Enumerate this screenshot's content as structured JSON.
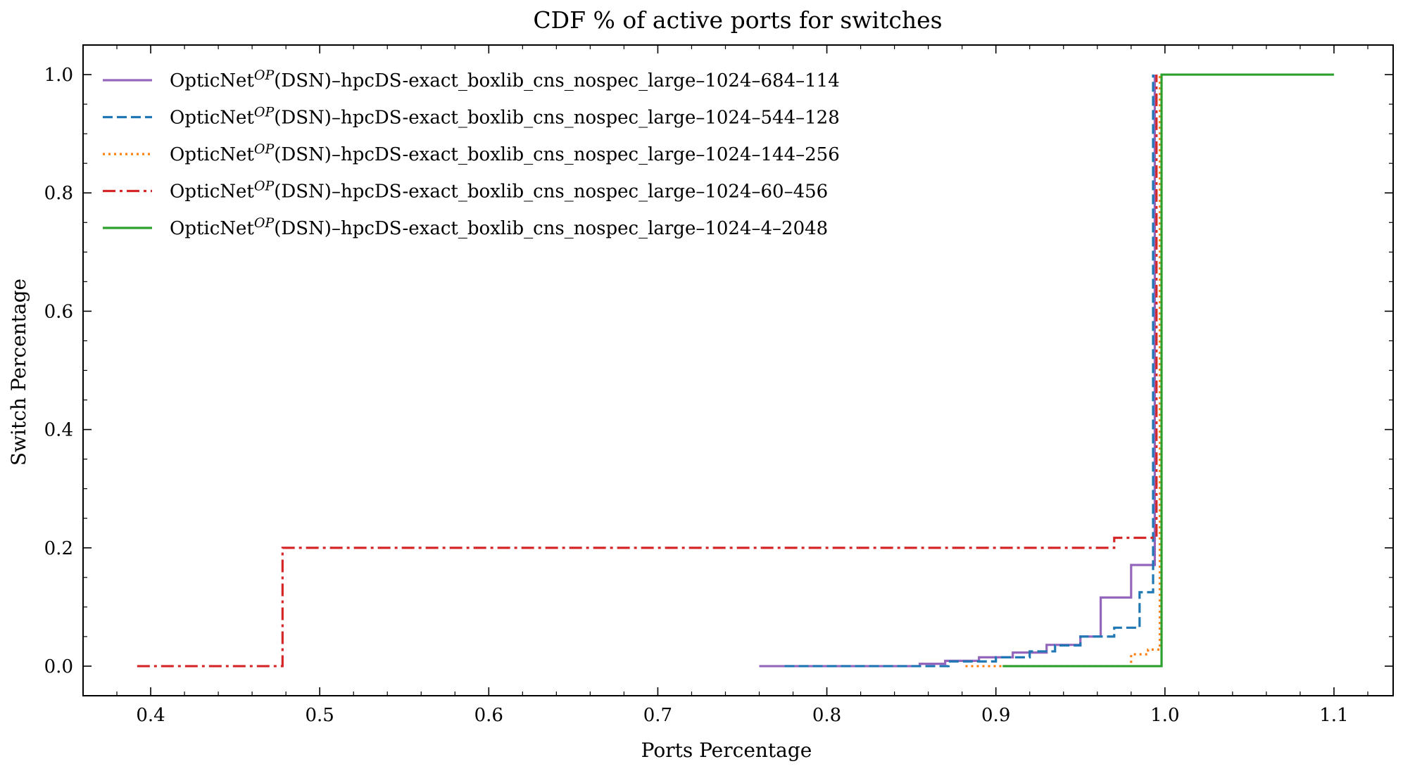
{
  "chart_data": {
    "type": "line",
    "title": "CDF % of active ports for switches",
    "xlabel": "Ports Percentage",
    "ylabel": "Switch Percentage",
    "xlim": [
      0.36,
      1.135
    ],
    "ylim": [
      -0.05,
      1.05
    ],
    "xticks": [
      0.4,
      0.5,
      0.6,
      0.7,
      0.8,
      0.9,
      1.0,
      1.1
    ],
    "xtick_labels": [
      "0.4",
      "0.5",
      "0.6",
      "0.7",
      "0.8",
      "0.9",
      "1.0",
      "1.1"
    ],
    "yticks": [
      0.0,
      0.2,
      0.4,
      0.6,
      0.8,
      1.0
    ],
    "ytick_labels": [
      "0.0",
      "0.2",
      "0.4",
      "0.6",
      "0.8",
      "1.0"
    ],
    "grid": false,
    "legend_position": "top-left",
    "series": [
      {
        "name": "OpticNet",
        "name_sup": "OP",
        "name_rest": "(DSN)–hpcDS-exact_boxlib_cns_nospec_large–1024–684–114",
        "color": "#9467bd",
        "dash": "solid",
        "x": [
          0.76,
          0.855,
          0.87,
          0.89,
          0.91,
          0.93,
          0.95,
          0.962,
          0.98,
          0.994,
          0.994
        ],
        "y": [
          0.0,
          0.004,
          0.009,
          0.015,
          0.023,
          0.036,
          0.05,
          0.116,
          0.171,
          0.171,
          1.0
        ]
      },
      {
        "name": "OpticNet",
        "name_sup": "OP",
        "name_rest": "(DSN)–hpcDS-exact_boxlib_cns_nospec_large–1024–544–128",
        "color": "#1f77b4",
        "dash": "dashed",
        "x": [
          0.775,
          0.872,
          0.9,
          0.92,
          0.935,
          0.95,
          0.97,
          0.985,
          0.993,
          0.993
        ],
        "y": [
          0.0,
          0.008,
          0.015,
          0.025,
          0.035,
          0.05,
          0.065,
          0.125,
          0.125,
          1.0
        ]
      },
      {
        "name": "OpticNet",
        "name_sup": "OP",
        "name_rest": "(DSN)–hpcDS-exact_boxlib_cns_nospec_large–1024–144–256",
        "color": "#ff7f0e",
        "dash": "dotted",
        "x": [
          0.882,
          0.98,
          0.99,
          0.997,
          0.997
        ],
        "y": [
          0.0,
          0.02,
          0.028,
          0.028,
          1.0
        ]
      },
      {
        "name": "OpticNet",
        "name_sup": "OP",
        "name_rest": "(DSN)–hpcDS-exact_boxlib_cns_nospec_large–1024–60–456",
        "color": "#d62728",
        "dash": "dashdot",
        "x": [
          0.392,
          0.478,
          0.97,
          0.995,
          0.995
        ],
        "y": [
          0.0,
          0.2,
          0.217,
          0.217,
          1.0
        ]
      },
      {
        "name": "OpticNet",
        "name_sup": "OP",
        "name_rest": "(DSN)–hpcDS-exact_boxlib_cns_nospec_large–1024–4–2048",
        "color": "#2ca02c",
        "dash": "solid",
        "x": [
          0.904,
          0.998,
          1.1
        ],
        "y": [
          0.0,
          1.0,
          1.0
        ]
      }
    ]
  }
}
